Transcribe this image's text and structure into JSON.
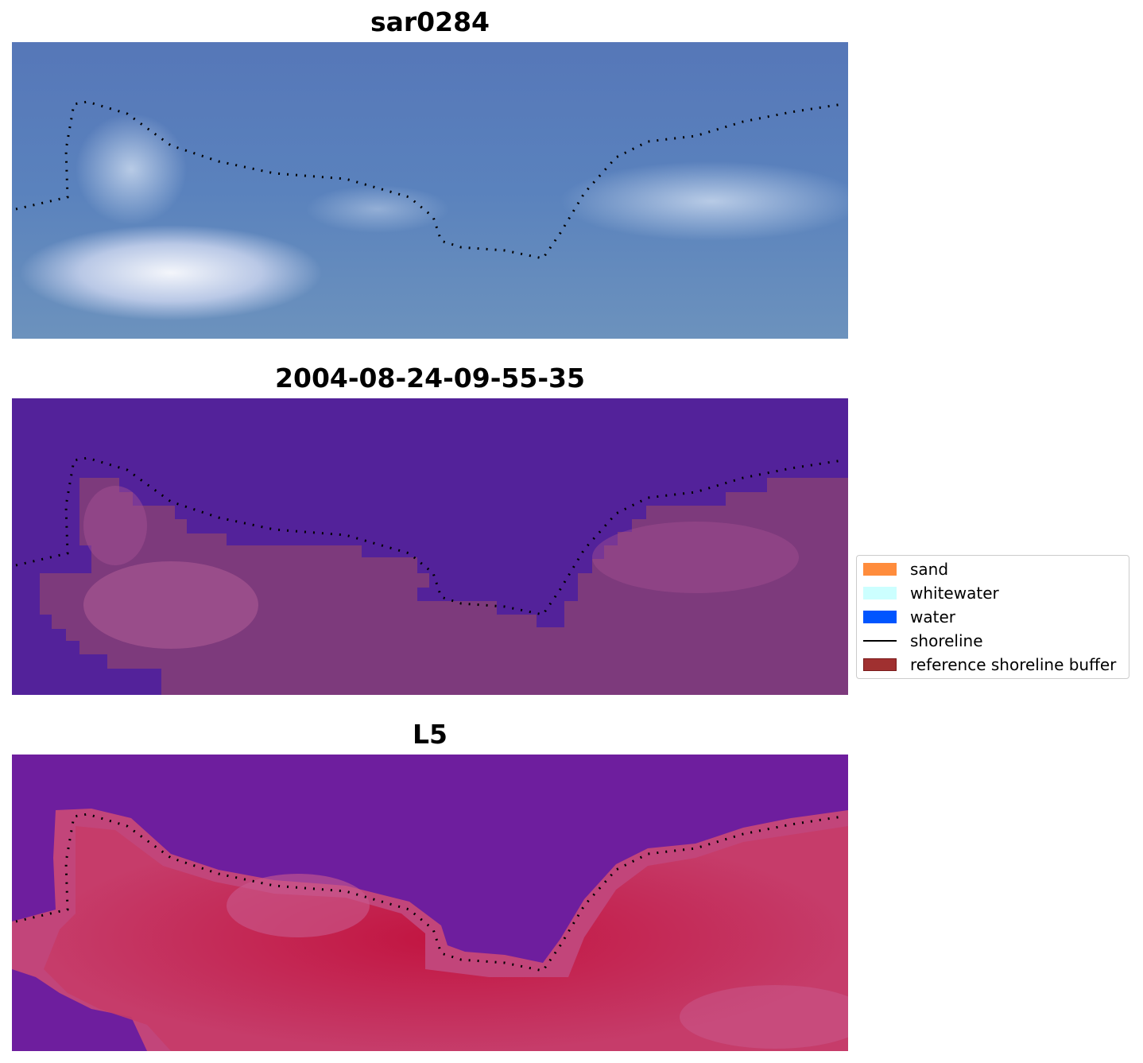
{
  "panels": [
    {
      "title": "sar0284"
    },
    {
      "title": "2004-08-24-09-55-35"
    },
    {
      "title": "L5"
    }
  ],
  "legend": {
    "items": [
      {
        "label": "sand",
        "color": "#ff8c3c",
        "kind": "patch"
      },
      {
        "label": "whitewater",
        "color": "#ccffff",
        "kind": "patch"
      },
      {
        "label": "water",
        "color": "#0055ff",
        "kind": "patch"
      },
      {
        "label": "shoreline",
        "color": "#000000",
        "kind": "line"
      },
      {
        "label": "reference shoreline buffer",
        "color": "#a03030",
        "kind": "patch"
      }
    ]
  },
  "colors": {
    "rgb_water": "#5a7fbf",
    "rgb_cloud": "#e8eef8",
    "class_water": "#53229a",
    "class_land": "#7d3a7c",
    "ndwi_water": "#6a1aa0",
    "ndwi_land": "#c4214e"
  }
}
